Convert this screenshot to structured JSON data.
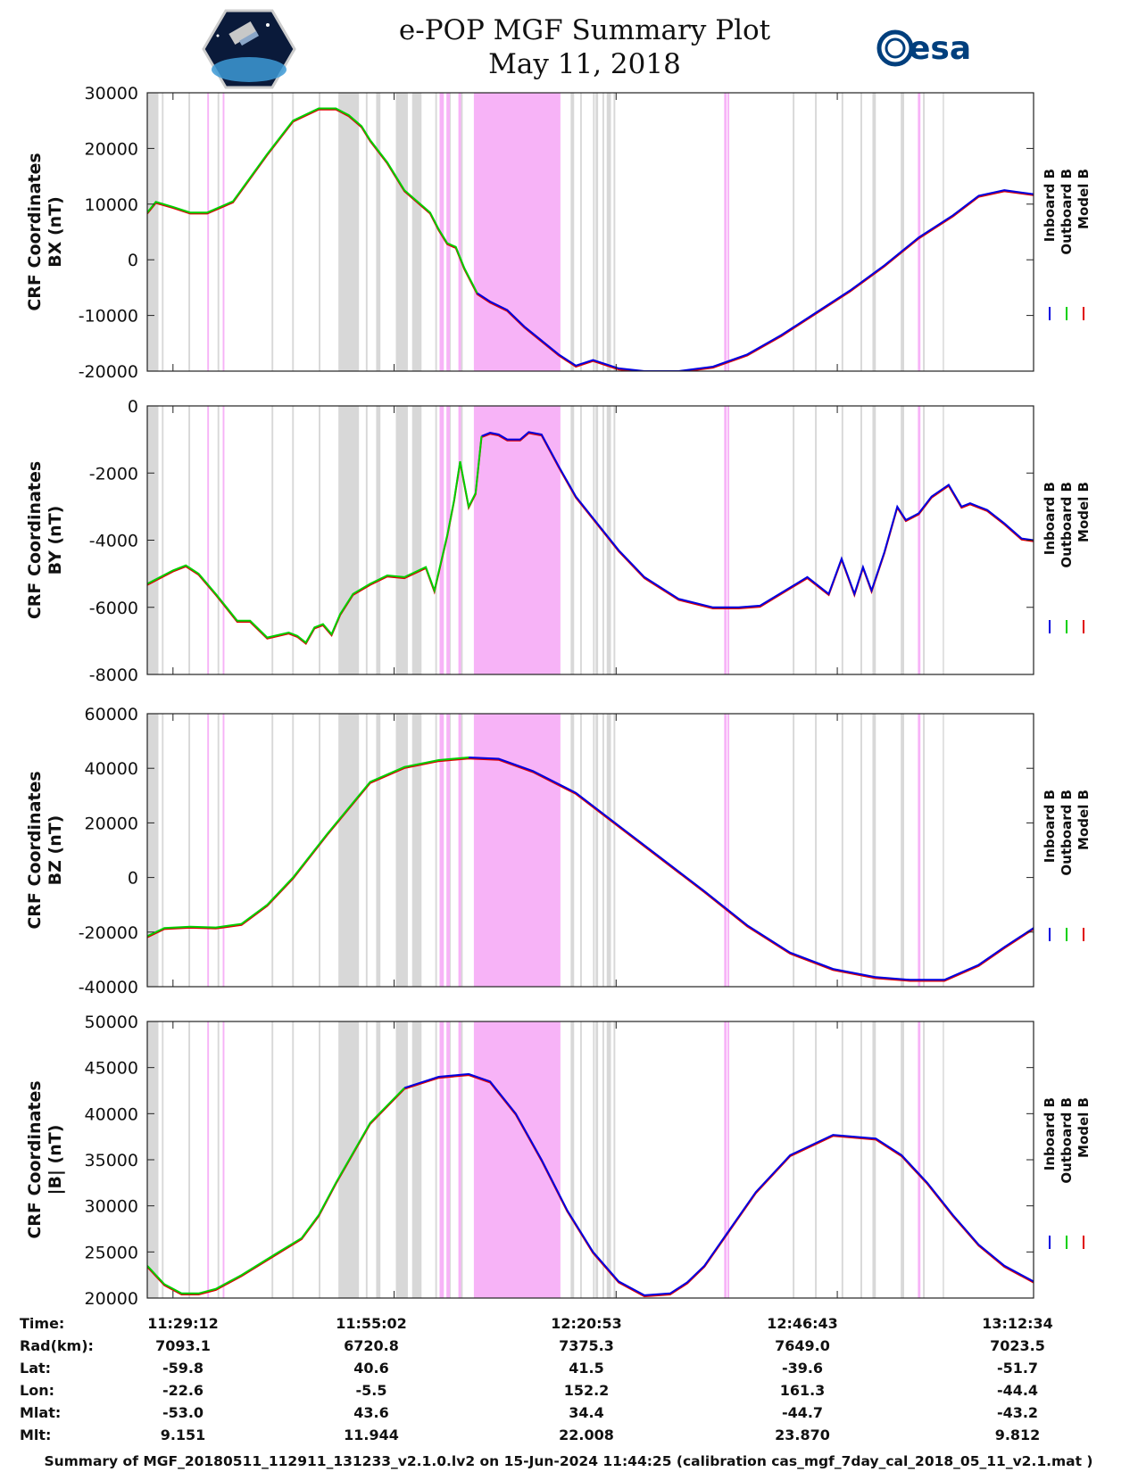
{
  "header": {
    "title": "e-POP MGF Summary Plot",
    "date": "May 11, 2018",
    "logo_left": "cassiope-logo",
    "logo_right": "esa"
  },
  "colors": {
    "inboard": "#0000e0",
    "outboard": "#00d000",
    "model": "#e00000",
    "gray_band": "#d8d8d8",
    "magenta_band": "#f7b3f7",
    "esa_blue": "#003f7d"
  },
  "chart_data": [
    {
      "type": "line",
      "ylabel_line1": "CRF Coordinates",
      "ylabel_line2": "BX (nT)",
      "ylim": [
        -20000,
        30000
      ],
      "yticks": [
        "30000",
        "20000",
        "10000",
        "0",
        "-10000",
        "-20000"
      ],
      "legend": [
        "Inboard B",
        "Outboard B",
        "Model B"
      ],
      "x_minutes": [
        0,
        1,
        3,
        5,
        7,
        10,
        14,
        17,
        20,
        22,
        23.5,
        25,
        26,
        28,
        30,
        31.5,
        33,
        34,
        35,
        36,
        37,
        38.5,
        40,
        42,
        44,
        46,
        48,
        50,
        52,
        55,
        58,
        62,
        66,
        70,
        74,
        78,
        82,
        86,
        90,
        94,
        97,
        100,
        103.4
      ],
      "values": [
        8500,
        10400,
        9500,
        8500,
        8500,
        10500,
        19000,
        25000,
        27200,
        27200,
        26000,
        24000,
        21500,
        17500,
        12500,
        10500,
        8500,
        5500,
        3000,
        2300,
        -1500,
        -6000,
        -7500,
        -9000,
        -12000,
        -14500,
        -17000,
        -19000,
        -18000,
        -19500,
        -20000,
        -20000,
        -19200,
        -17000,
        -13500,
        -9500,
        -5500,
        -1000,
        4000,
        8000,
        11500,
        12500,
        11800
      ],
      "green_until_minute": 39
    },
    {
      "type": "line",
      "ylabel_line1": "CRF Coordinates",
      "ylabel_line2": "BY (nT)",
      "ylim": [
        -8000,
        0
      ],
      "yticks": [
        "0",
        "-2000",
        "-4000",
        "-6000",
        "-8000"
      ],
      "legend": [
        "Inboard B",
        "Outboard B",
        "Model B"
      ],
      "x_minutes": [
        0,
        3,
        4.5,
        6,
        8,
        10.5,
        12,
        14,
        16.5,
        17.5,
        18.5,
        19.5,
        20.5,
        21.5,
        22.5,
        24,
        26,
        28,
        30,
        32.5,
        33.5,
        34.5,
        35,
        35.8,
        36.5,
        37.5,
        38.3,
        39,
        40,
        41,
        42,
        43.5,
        44.5,
        46,
        48,
        50,
        52.5,
        55,
        58,
        62,
        66,
        69,
        71.5,
        77,
        79.5,
        81,
        82.5,
        83.5,
        84.5,
        86,
        87.5,
        88.5,
        90,
        91.5,
        93.5,
        95,
        96,
        97,
        98,
        100,
        102,
        103.4
      ],
      "values": [
        -5300,
        -4900,
        -4750,
        -5000,
        -5600,
        -6400,
        -6400,
        -6900,
        -6750,
        -6850,
        -7050,
        -6600,
        -6500,
        -6800,
        -6200,
        -5600,
        -5300,
        -5050,
        -5100,
        -4800,
        -5500,
        -4400,
        -3850,
        -2800,
        -1650,
        -3000,
        -2600,
        -900,
        -800,
        -850,
        -1000,
        -1000,
        -780,
        -850,
        -1800,
        -2700,
        -3500,
        -4300,
        -5100,
        -5750,
        -6000,
        -6000,
        -5950,
        -5100,
        -5600,
        -4550,
        -5600,
        -4800,
        -5500,
        -4350,
        -3000,
        -3400,
        -3200,
        -2700,
        -2350,
        -3000,
        -2900,
        -3000,
        -3100,
        -3500,
        -3950,
        -4000
      ],
      "green_until_minute": 39
    },
    {
      "type": "line",
      "ylabel_line1": "CRF Coordinates",
      "ylabel_line2": "BZ (nT)",
      "ylim": [
        -40000,
        60000
      ],
      "yticks": [
        "60000",
        "40000",
        "20000",
        "0",
        "-20000",
        "-40000"
      ],
      "legend": [
        "Inboard B",
        "Outboard B",
        "Model B"
      ],
      "x_minutes": [
        0,
        2,
        5,
        8,
        11,
        14,
        17,
        21,
        26,
        30,
        34,
        37.5,
        41,
        45,
        50,
        55,
        60,
        65,
        70,
        75,
        80,
        85,
        89,
        93,
        97,
        100,
        103.4
      ],
      "values": [
        -21500,
        -18500,
        -18000,
        -18300,
        -17000,
        -10000,
        0,
        16000,
        35000,
        40500,
        43000,
        44000,
        43500,
        39000,
        31000,
        19000,
        7000,
        -5000,
        -17500,
        -27500,
        -33500,
        -36500,
        -37500,
        -37500,
        -32000,
        -25500,
        -18500
      ],
      "green_until_minute": 38
    },
    {
      "type": "line",
      "ylabel_line1": "CRF Coordinates",
      "ylabel_line2": "|B| (nT)",
      "ylim": [
        20000,
        50000
      ],
      "yticks": [
        "50000",
        "45000",
        "40000",
        "35000",
        "30000",
        "25000",
        "20000"
      ],
      "legend": [
        "Inboard B",
        "Outboard B",
        "Model B"
      ],
      "x_minutes": [
        0,
        2,
        4,
        6,
        8,
        11,
        15,
        18,
        20,
        22,
        26,
        30,
        34,
        37.5,
        40,
        43,
        46,
        49,
        52,
        55,
        58,
        61,
        63,
        65,
        68,
        71,
        75,
        80,
        85,
        88,
        91,
        94,
        97,
        100,
        103.4
      ],
      "values": [
        23500,
        21500,
        20500,
        20500,
        21000,
        22500,
        24800,
        26500,
        29000,
        32500,
        39000,
        42800,
        44000,
        44300,
        43500,
        40000,
        35000,
        29500,
        25000,
        21800,
        20300,
        20500,
        21700,
        23500,
        27500,
        31500,
        35500,
        37700,
        37300,
        35500,
        32500,
        29000,
        25800,
        23500,
        21800
      ],
      "green_until_minute": 33
    }
  ],
  "bands": {
    "gray_minutes": [
      [
        0,
        0.5
      ],
      [
        1.7,
        1.9
      ],
      [
        4.8,
        5.0
      ],
      [
        8.2,
        8.4
      ],
      [
        14.5,
        14.7
      ],
      [
        16.9,
        17.1
      ],
      [
        20.0,
        20.2
      ],
      [
        22.3,
        22.5
      ],
      [
        24.5,
        24.7
      ],
      [
        25.5,
        25.7
      ],
      [
        30.0,
        30.2
      ],
      [
        33.6,
        33.8
      ],
      [
        35.2,
        35.4
      ],
      [
        36.6,
        36.8
      ],
      [
        40.4,
        40.6
      ],
      [
        42.8,
        43.0
      ],
      [
        46.2,
        46.4
      ],
      [
        47.5,
        47.7
      ],
      [
        49.4,
        49.6
      ],
      [
        50.5,
        50.7
      ],
      [
        52.0,
        52.2
      ],
      [
        53.1,
        53.3
      ],
      [
        54.4,
        54.6
      ],
      [
        75.3,
        75.5
      ],
      [
        77.9,
        78.1
      ],
      [
        81.0,
        81.2
      ],
      [
        83.2,
        83.4
      ],
      [
        90.5,
        90.7
      ],
      [
        92.8,
        92.9
      ]
    ],
    "gray_major": [
      [
        0,
        1.3
      ],
      [
        22.4,
        24.6
      ],
      [
        26.7,
        27.2
      ],
      [
        29.0,
        30.4
      ],
      [
        30.9,
        32.0
      ],
      [
        49.4,
        49.8
      ],
      [
        52.3,
        52.6
      ],
      [
        53.6,
        54.1
      ],
      [
        84.6,
        85.0
      ],
      [
        87.9,
        88.3
      ]
    ],
    "magenta_minutes": [
      [
        7.0,
        7.2
      ],
      [
        8.8,
        9.0
      ],
      [
        34.1,
        34.6
      ],
      [
        34.9,
        35.3
      ],
      [
        36.3,
        36.6
      ],
      [
        38.1,
        48.2
      ],
      [
        67.3,
        67.6
      ],
      [
        67.7,
        67.9
      ],
      [
        89.9,
        90.2
      ]
    ]
  },
  "x_axis": {
    "start_minute": 0,
    "end_minute": 103.4,
    "tick_minutes": [
      3.0,
      28.8,
      54.7,
      80.5,
      106.4
    ],
    "tick_labels": [
      "11:29:12",
      "11:55:02",
      "12:20:53",
      "12:46:43",
      "13:12:34"
    ]
  },
  "info_table": {
    "labels": [
      "Time:",
      "Rad(km):",
      "Lat:",
      "Lon:",
      "Mlat:",
      "Mlt:"
    ],
    "columns": [
      [
        "11:29:12",
        "7093.1",
        "-59.8",
        "-22.6",
        "-53.0",
        "9.151"
      ],
      [
        "11:55:02",
        "6720.8",
        "40.6",
        "-5.5",
        "43.6",
        "11.944"
      ],
      [
        "12:20:53",
        "7375.3",
        "41.5",
        "152.2",
        "34.4",
        "22.008"
      ],
      [
        "12:46:43",
        "7649.0",
        "-39.6",
        "161.3",
        "-44.7",
        "23.870"
      ],
      [
        "13:12:34",
        "7023.5",
        "-51.7",
        "-44.4",
        "-43.2",
        "9.812"
      ]
    ]
  },
  "footer": "Summary of MGF_20180511_112911_131233_v2.1.0.lv2 on 15-Jun-2024 11:44:25 (calibration cas_mgf_7day_cal_2018_05_11_v2.1.mat )"
}
